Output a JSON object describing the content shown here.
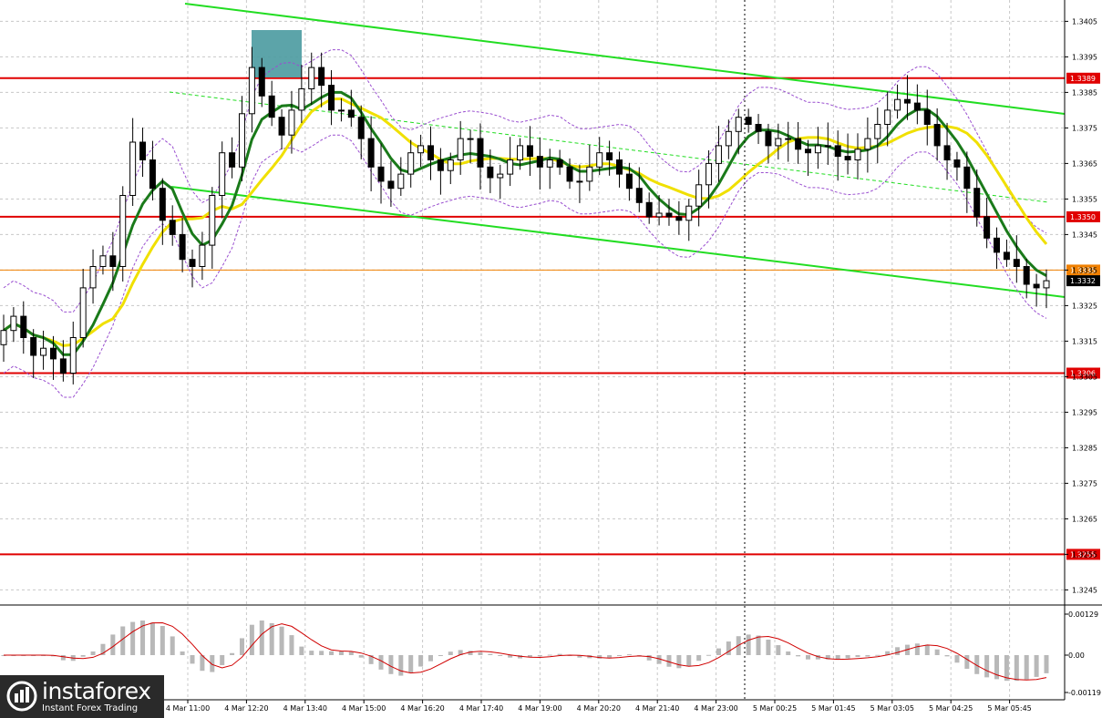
{
  "chart_data": {
    "type": "candlestick",
    "price_axis": {
      "ticks": [
        "1.3405",
        "1.3395",
        "1.3385",
        "1.3375",
        "1.3365",
        "1.3355",
        "1.3345",
        "1.3335",
        "1.3325",
        "1.3315",
        "1.3305",
        "1.3295",
        "1.3285",
        "1.3275",
        "1.3265",
        "1.3255",
        "1.3245"
      ],
      "ylim": [
        1.3241,
        1.3411
      ]
    },
    "time_axis": {
      "labels": [
        "4 Mar 11:00",
        "4 Mar 12:20",
        "4 Mar 13:40",
        "4 Mar 15:00",
        "4 Mar 16:20",
        "4 Mar 17:40",
        "4 Mar 19:00",
        "4 Mar 20:20",
        "4 Mar 21:40",
        "4 Mar 23:00",
        "5 Mar 00:25",
        "5 Mar 01:45",
        "5 Mar 03:05",
        "5 Mar 04:25",
        "5 Mar 05:45"
      ]
    },
    "horizontal_levels": [
      {
        "label": "1.3389",
        "value": 1.3389,
        "color": "#e00000"
      },
      {
        "label": "1.3350",
        "value": 1.335,
        "color": "#e00000"
      },
      {
        "label": "1.3306",
        "value": 1.3306,
        "color": "#e00000"
      },
      {
        "label": "1.3255",
        "value": 1.3255,
        "color": "#e00000"
      },
      {
        "label": "1.3335",
        "value": 1.3335,
        "color": "#f08000"
      },
      {
        "label": "1.3332",
        "value": 1.3332,
        "color": "#000000"
      }
    ],
    "trend_channel_color": "#22dd22",
    "ma_fast_color": "#1a7a1a",
    "ma_slow_color": "#f0e000",
    "envelope_color": "#9a4fd0",
    "highlight_color": "#4a9aa0",
    "macd_axis": {
      "ticks": [
        "0.00129",
        "0.00",
        "-0.00119"
      ]
    },
    "series": [
      {
        "name": "close",
        "values": [
          1.3318,
          1.3322,
          1.3316,
          1.3311,
          1.3313,
          1.331,
          1.3306,
          1.3316,
          1.333,
          1.3336,
          1.3339,
          1.3336,
          1.3356,
          1.3371,
          1.3366,
          1.3358,
          1.3349,
          1.3345,
          1.3338,
          1.3336,
          1.3342,
          1.3356,
          1.3368,
          1.3364,
          1.3379,
          1.3392,
          1.3384,
          1.3378,
          1.3373,
          1.338,
          1.3386,
          1.3392,
          1.3387,
          1.338,
          1.338,
          1.3378,
          1.3372,
          1.3364,
          1.336,
          1.3358,
          1.3362,
          1.3368,
          1.337,
          1.3366,
          1.3363,
          1.3366,
          1.3372,
          1.3372,
          1.3364,
          1.3361,
          1.3362,
          1.3366,
          1.337,
          1.3367,
          1.3364,
          1.3366,
          1.3364,
          1.336,
          1.336,
          1.3364,
          1.3368,
          1.3366,
          1.3362,
          1.3358,
          1.3354,
          1.335,
          1.3351,
          1.335,
          1.3349,
          1.3353,
          1.3359,
          1.3365,
          1.337,
          1.3374,
          1.3378,
          1.3376,
          1.3374,
          1.337,
          1.3372,
          1.3372,
          1.3369,
          1.3368,
          1.337,
          1.337,
          1.3367,
          1.3366,
          1.3369,
          1.3372,
          1.3376,
          1.338,
          1.3383,
          1.3382,
          1.338,
          1.3376,
          1.337,
          1.3366,
          1.3364,
          1.3358,
          1.335,
          1.3344,
          1.334,
          1.3338,
          1.3336,
          1.3331,
          1.333,
          1.3332
        ]
      }
    ]
  }
}
